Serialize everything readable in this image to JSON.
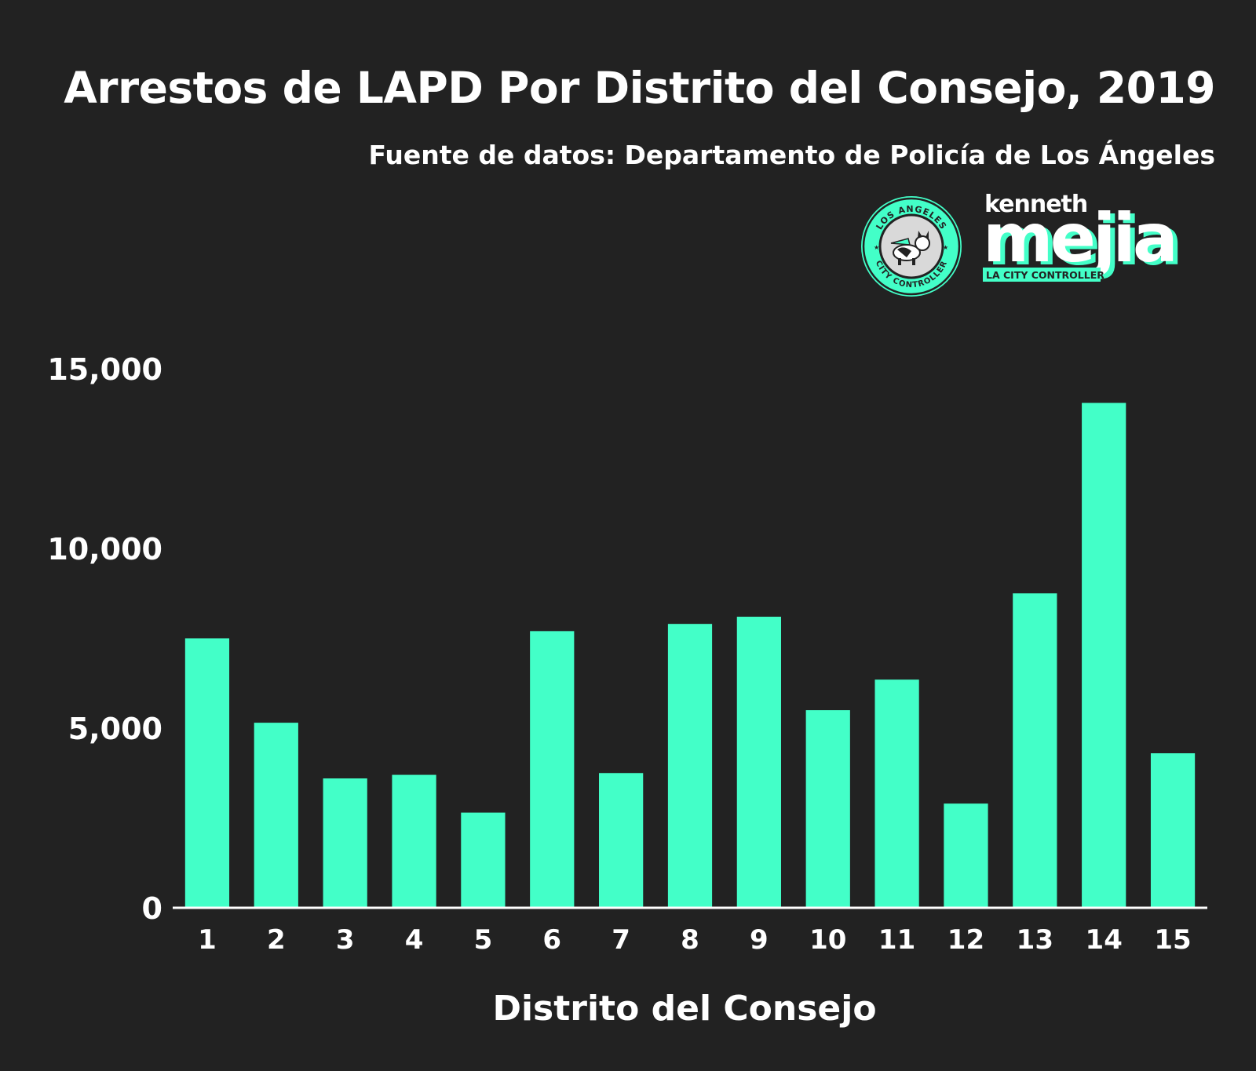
{
  "header": {
    "title": "Arrestos de LAPD Por Distrito del Consejo, 2019",
    "subtitle": "Fuente de datos: Departamento de Policía de Los Ángeles"
  },
  "logos": {
    "seal_top_text": "LOS ANGELES",
    "seal_bottom_text": "CITY CONTROLLER",
    "wordmark_top": "kenneth",
    "wordmark_main": "mejia",
    "wordmark_tag": "LA CITY CONTROLLER"
  },
  "colors": {
    "background": "#222222",
    "bar": "#43FFC8",
    "text": "#ffffff"
  },
  "chart_data": {
    "type": "bar",
    "title": "Arrestos de LAPD Por Distrito del Consejo, 2019",
    "subtitle": "Fuente de datos: Departamento de Policía de Los Ángeles",
    "xlabel": "Distrito del Consejo",
    "ylabel": "",
    "categories": [
      "1",
      "2",
      "3",
      "4",
      "5",
      "6",
      "7",
      "8",
      "9",
      "10",
      "11",
      "12",
      "13",
      "14",
      "15"
    ],
    "values": [
      7500,
      5150,
      3600,
      3700,
      2650,
      7700,
      3750,
      7900,
      8100,
      5500,
      6350,
      2900,
      8750,
      14050,
      4300
    ],
    "ylim": [
      0,
      15000
    ],
    "yticks": [
      0,
      5000,
      10000,
      15000
    ],
    "ytick_labels": [
      "0",
      "5,000",
      "10,000",
      "15,000"
    ],
    "grid": false,
    "legend": "none"
  }
}
